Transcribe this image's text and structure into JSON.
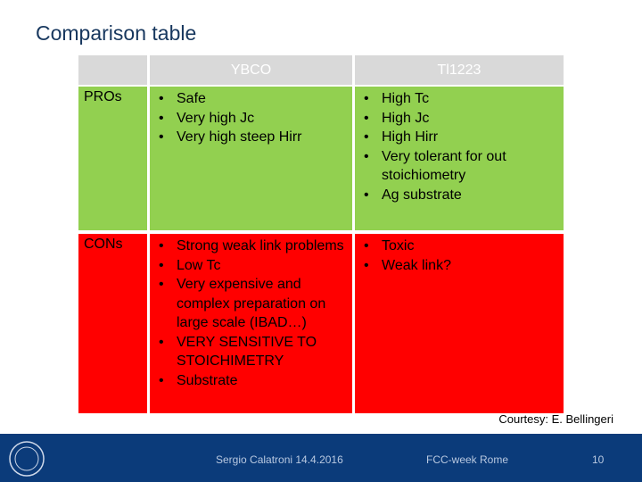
{
  "header": {
    "title": "Comparison table"
  },
  "table": {
    "columns": [
      "YBCO",
      "Tl1223"
    ],
    "rows": [
      {
        "label": "PROs",
        "cells": [
          [
            "Safe",
            "Very high Jc",
            "Very high steep Hirr"
          ],
          [
            "High Tc",
            "High Jc",
            "High Hirr",
            "Very tolerant for out stoichiometry",
            "Ag substrate"
          ]
        ]
      },
      {
        "label": "CONs",
        "cells": [
          [
            "Strong weak link problems",
            "Low Tc",
            "Very expensive and complex preparation on large scale (IBAD…)",
            "VERY SENSITIVE TO STOICHIMETRY",
            "Substrate"
          ],
          [
            "Toxic",
            "Weak link?"
          ]
        ]
      }
    ]
  },
  "credit": "Courtesy: E. Bellingeri",
  "footer": {
    "author": "Sergio Calatroni 14.4.2016",
    "event": "FCC-week Rome",
    "page": "10"
  }
}
